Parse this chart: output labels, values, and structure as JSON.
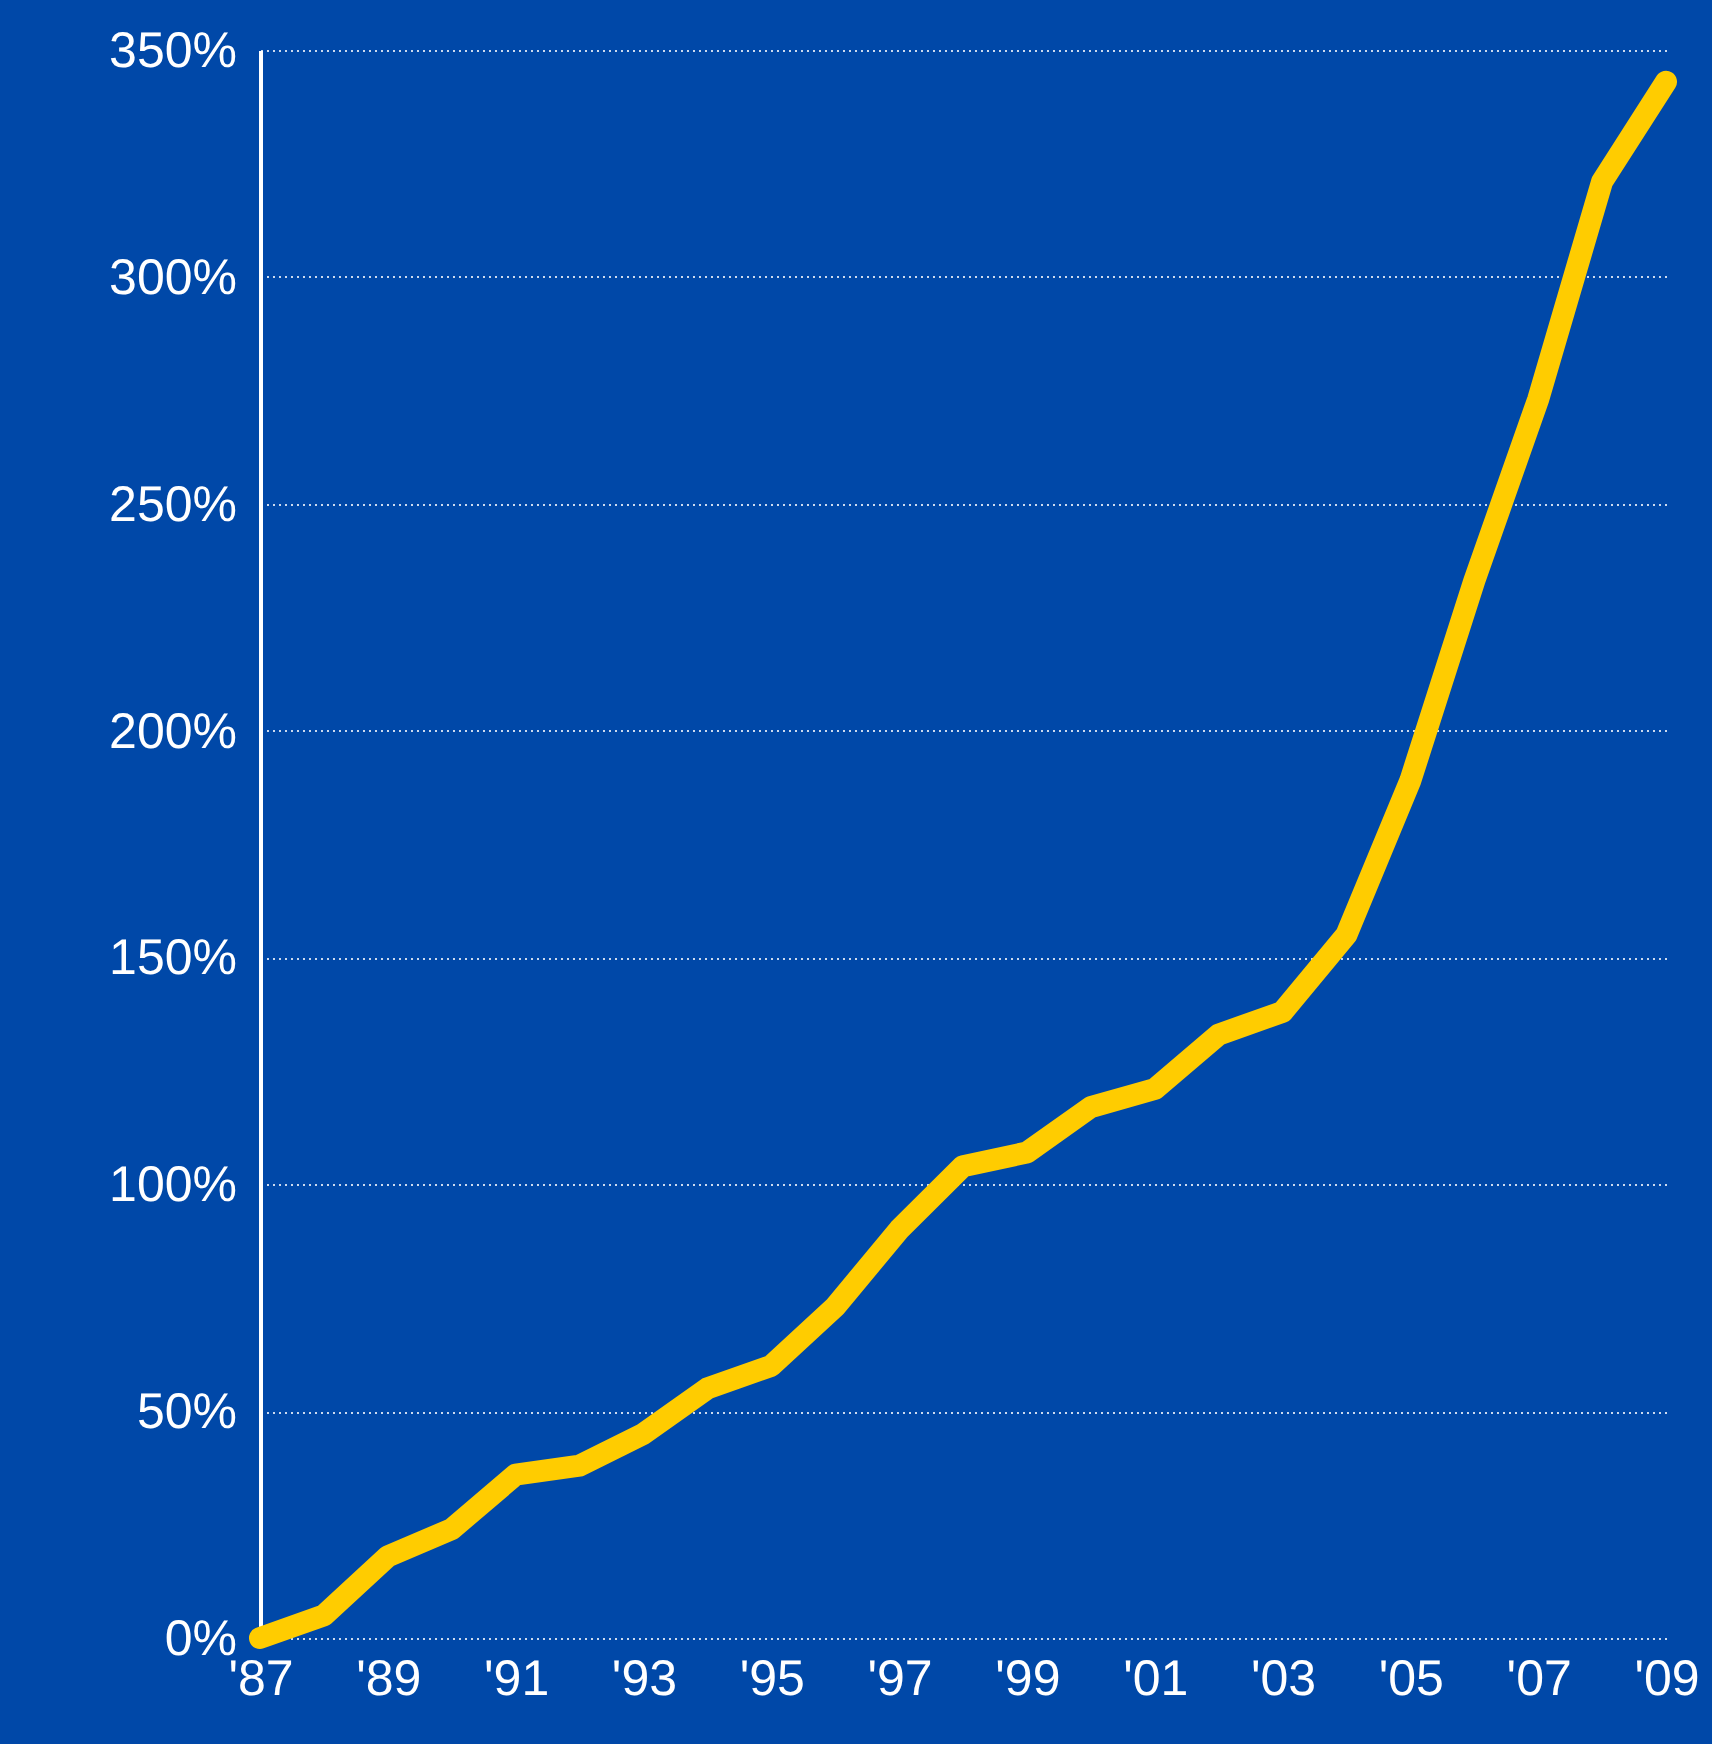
{
  "chart_data": {
    "type": "line",
    "x": [
      1987,
      1988,
      1989,
      1990,
      1991,
      1992,
      1993,
      1994,
      1995,
      1996,
      1997,
      1998,
      1999,
      2000,
      2001,
      2002,
      2003,
      2004,
      2005,
      2006,
      2007,
      2008,
      2009
    ],
    "series": [
      {
        "color": "#ffcc00",
        "values": [
          0,
          5,
          18,
          24,
          36,
          38,
          45,
          55,
          60,
          73,
          90,
          104,
          107,
          117,
          121,
          133,
          138,
          155,
          189,
          233,
          273,
          321,
          343
        ]
      }
    ],
    "xlim": [
      1987,
      2009
    ],
    "xticks": [
      {
        "value": 1987,
        "label": "'87"
      },
      {
        "value": 1989,
        "label": "'89"
      },
      {
        "value": 1991,
        "label": "'91"
      },
      {
        "value": 1993,
        "label": "'93"
      },
      {
        "value": 1995,
        "label": "'95"
      },
      {
        "value": 1997,
        "label": "'97"
      },
      {
        "value": 1999,
        "label": "'99"
      },
      {
        "value": 2001,
        "label": "'01"
      },
      {
        "value": 2003,
        "label": "'03"
      },
      {
        "value": 2005,
        "label": "'05"
      },
      {
        "value": 2007,
        "label": "'07"
      },
      {
        "value": 2009,
        "label": "'09"
      }
    ],
    "ylim": [
      0,
      350
    ],
    "yticks": [
      {
        "value": 0,
        "label": "0%"
      },
      {
        "value": 50,
        "label": "50%"
      },
      {
        "value": 100,
        "label": "100%"
      },
      {
        "value": 150,
        "label": "150%"
      },
      {
        "value": 200,
        "label": "200%"
      },
      {
        "value": 250,
        "label": "250%"
      },
      {
        "value": 300,
        "label": "300%"
      },
      {
        "value": 350,
        "label": "350%"
      }
    ],
    "grid": "y",
    "marker": "none",
    "line_style": "solid"
  }
}
